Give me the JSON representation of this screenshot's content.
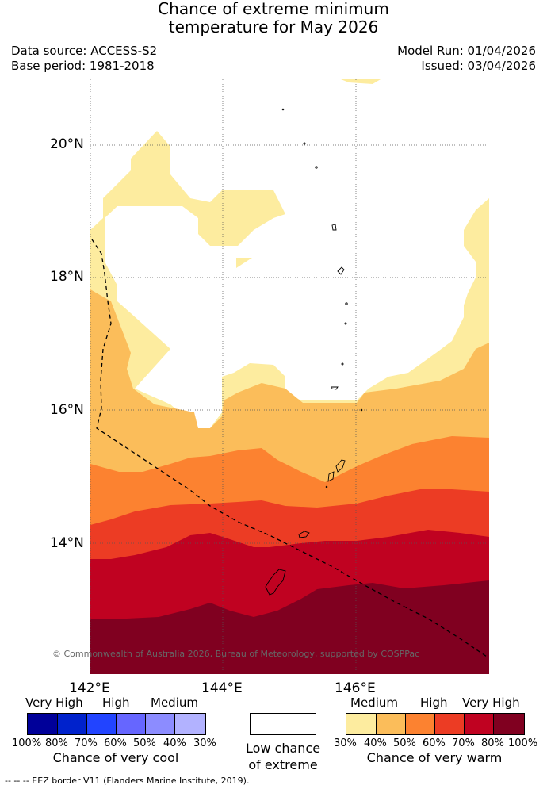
{
  "title": {
    "line1": "Chance of extreme minimum",
    "line2": "temperature for May 2026"
  },
  "info": {
    "data_source": "Data source: ACCESS-S2",
    "base_period": "Base period: 1981-2018",
    "model_run": "Model Run: 01/04/2026",
    "issued": "Issued: 03/04/2026"
  },
  "map": {
    "lat_labels": [
      "20°N",
      "18°N",
      "16°N",
      "14°N"
    ],
    "lon_labels": [
      "142°E",
      "144°E",
      "146°E"
    ],
    "copyright": "© Commonwealth of Australia 2026, Bureau of Meteorology, supported by COSPPac",
    "band_colors": [
      "#fdec9f",
      "#fbbd5a",
      "#fc8230",
      "#ec3c24",
      "#c00221",
      "#800020"
    ]
  },
  "legend": {
    "cool": {
      "categories": [
        "Very High",
        "High",
        "Medium"
      ],
      "ticks": [
        "100%",
        "80%",
        "70%",
        "60%",
        "50%",
        "40%",
        "30%"
      ],
      "colors": [
        "#000099",
        "#0022cc",
        "#2244ff",
        "#6666ff",
        "#8c8cff",
        "#b2b2ff"
      ],
      "title": "Chance of very cool"
    },
    "low": {
      "title_line1": "Low chance",
      "title_line2": "of extreme",
      "color": "#ffffff"
    },
    "warm": {
      "categories": [
        "Medium",
        "High",
        "Very High"
      ],
      "ticks": [
        "30%",
        "40%",
        "50%",
        "60%",
        "70%",
        "80%",
        "100%"
      ],
      "colors": [
        "#fdec9f",
        "#fbbd5a",
        "#fc8230",
        "#ec3c24",
        "#c00221",
        "#800020"
      ],
      "title": "Chance of very warm"
    }
  },
  "footer": "-- -- -- EEZ border V11 (Flanders Marine Institute, 2019)."
}
